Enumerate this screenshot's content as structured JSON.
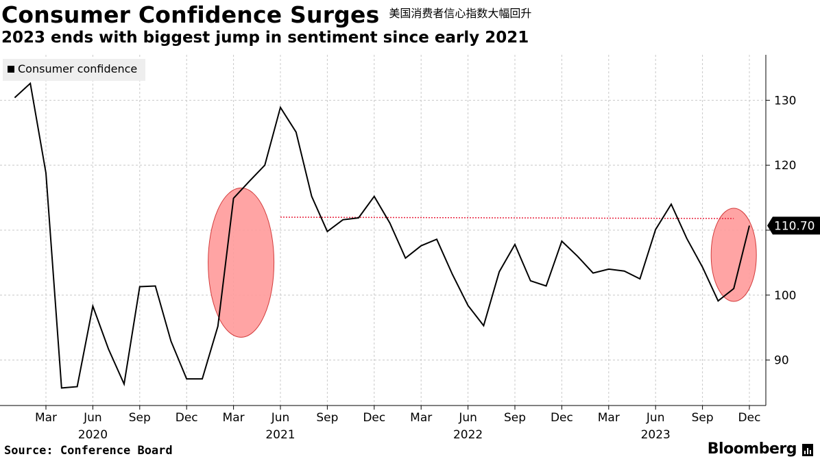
{
  "header": {
    "title": "Consumer Confidence Surges",
    "title_cn": "美国消费者信心指数大幅回升",
    "subtitle": "2023 ends with biggest jump in sentiment since early 2021"
  },
  "footer": {
    "source": "Source: Conference Board",
    "brand": "Bloomberg"
  },
  "icons": {
    "brand": "bloomberg-bars-icon"
  },
  "colors": {
    "line": "#000000",
    "highlight_fill": "#ff9a9a",
    "highlight_stroke": "#d23a3a",
    "reference_line": "#e8203c",
    "last_value_bg": "#000000"
  },
  "chart_data": {
    "type": "line",
    "x_label_month": [
      "Mar",
      "Jun",
      "Sep",
      "Dec",
      "Mar",
      "Jun",
      "Sep",
      "Dec",
      "Mar",
      "Jun",
      "Sep",
      "Dec",
      "Mar",
      "Jun",
      "Sep",
      "Dec"
    ],
    "x_label_year": [
      "2020",
      "2021",
      "2022",
      "2023"
    ],
    "y_ticks": [
      90,
      100,
      110,
      120,
      130
    ],
    "ylim": [
      83,
      137
    ],
    "grid": true,
    "axis_side": "right",
    "legend": {
      "position": "top-left",
      "entries": [
        "Consumer confidence"
      ]
    },
    "series": [
      {
        "name": "Consumer confidence",
        "dates": [
          "2020-01",
          "2020-02",
          "2020-03",
          "2020-04",
          "2020-05",
          "2020-06",
          "2020-07",
          "2020-08",
          "2020-09",
          "2020-10",
          "2020-11",
          "2020-12",
          "2021-01",
          "2021-02",
          "2021-03",
          "2021-04",
          "2021-05",
          "2021-06",
          "2021-07",
          "2021-08",
          "2021-09",
          "2021-10",
          "2021-11",
          "2021-12",
          "2022-01",
          "2022-02",
          "2022-03",
          "2022-04",
          "2022-05",
          "2022-06",
          "2022-07",
          "2022-08",
          "2022-09",
          "2022-10",
          "2022-11",
          "2022-12",
          "2023-01",
          "2023-02",
          "2023-03",
          "2023-04",
          "2023-05",
          "2023-06",
          "2023-07",
          "2023-08",
          "2023-09",
          "2023-10",
          "2023-11",
          "2023-12"
        ],
        "values": [
          130.4,
          132.6,
          118.8,
          85.7,
          85.9,
          98.3,
          91.7,
          86.3,
          101.3,
          101.4,
          92.9,
          87.1,
          87.1,
          95.2,
          114.9,
          117.5,
          120.0,
          128.9,
          125.1,
          115.2,
          109.8,
          111.6,
          111.9,
          115.2,
          111.1,
          105.7,
          107.6,
          108.6,
          103.2,
          98.4,
          95.3,
          103.6,
          107.8,
          102.2,
          101.4,
          108.3,
          106.0,
          103.4,
          104.0,
          103.7,
          102.5,
          110.1,
          114.0,
          108.7,
          104.3,
          99.1,
          101.0,
          110.7
        ]
      }
    ],
    "reference_line": {
      "value": 112.0,
      "from": "2021-06",
      "to": "2023-11"
    },
    "last_value_label": "110.70",
    "highlights": [
      {
        "center_date": "2021-03",
        "center_value": 105.0
      },
      {
        "center_date": "2023-11",
        "center_value": 106.2
      }
    ]
  }
}
